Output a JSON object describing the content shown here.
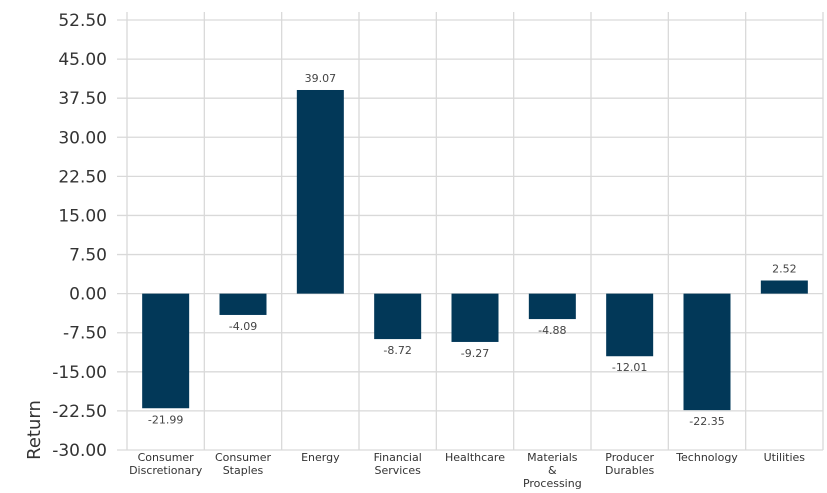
{
  "chart_data": {
    "type": "bar",
    "title": "",
    "xlabel": "",
    "ylabel": "Return",
    "categories": [
      [
        "Consumer",
        "Discretionary"
      ],
      [
        "Consumer",
        "Staples"
      ],
      [
        "Energy"
      ],
      [
        "Financial",
        "Services"
      ],
      [
        "Healthcare"
      ],
      [
        "Materials",
        "&",
        "Processing"
      ],
      [
        "Producer",
        "Durables"
      ],
      [
        "Technology"
      ],
      [
        "Utilities"
      ]
    ],
    "values": [
      -21.99,
      -4.09,
      39.07,
      -8.72,
      -9.27,
      -4.88,
      -12.01,
      -22.35,
      2.52
    ],
    "value_labels": [
      "-21.99",
      "-4.09",
      "39.07",
      "-8.72",
      "-9.27",
      "-4.88",
      "-12.01",
      "-22.35",
      "2.52"
    ],
    "yticks": [
      52.5,
      45,
      37.5,
      30,
      22.5,
      15,
      7.5,
      0,
      -7.5,
      -15,
      -22.5,
      -30
    ],
    "ytick_labels": [
      "52.50",
      "45.00",
      "37.50",
      "30.00",
      "22.50",
      "15.00",
      "7.50",
      "0.00",
      "-7.50",
      "-15.00",
      "-22.50",
      "-30.00"
    ],
    "ylim": [
      -30,
      52.5
    ],
    "grid": true,
    "bar_color": "#023858"
  }
}
